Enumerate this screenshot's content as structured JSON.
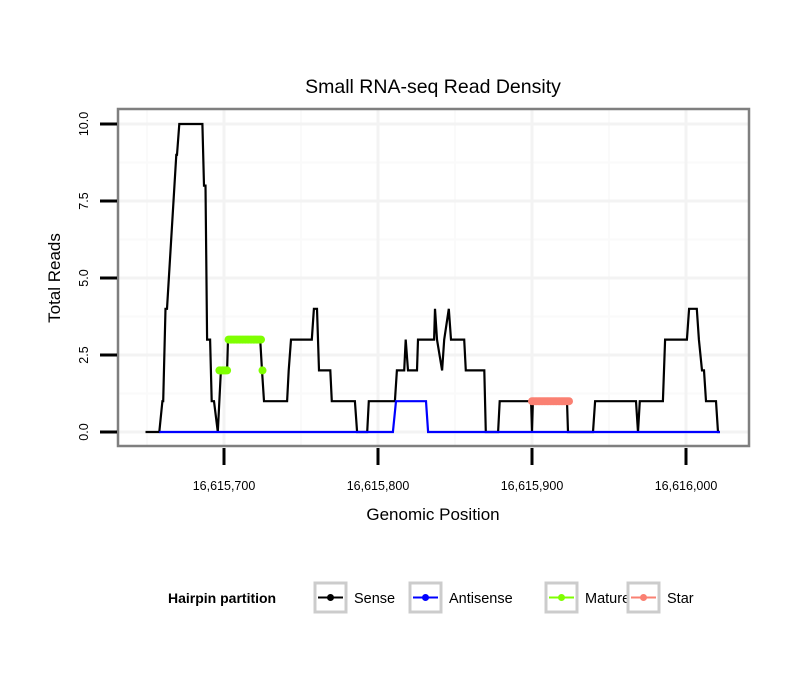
{
  "chart_data": {
    "type": "line",
    "title": "Small RNA-seq Read Density",
    "xlabel": "Genomic Position",
    "ylabel": "Total Reads",
    "xlim": [
      16615640,
      16616030
    ],
    "ylim": [
      -0.45,
      10.55
    ],
    "x_ticks": [
      16615700,
      16615800,
      16615900,
      16616000
    ],
    "x_tick_labels": [
      "16,615,700",
      "16,615,800",
      "16,615,900",
      "16,616,000"
    ],
    "y_ticks": [
      0,
      2.5,
      5,
      7.5,
      10
    ],
    "y_tick_labels": [
      "0.0",
      "2.5",
      "5.0",
      "7.5",
      "10.0"
    ],
    "grid": true,
    "legend": {
      "title": "Hairpin partition",
      "placement": "bottom",
      "entries": [
        {
          "label": "Sense",
          "color": "#000000"
        },
        {
          "label": "Antisense",
          "color": "#0000ff"
        },
        {
          "label": "Mature",
          "color": "#7fff00"
        },
        {
          "label": "Star",
          "color": "#fa8072"
        }
      ]
    },
    "series": [
      {
        "name": "Sense",
        "style": "line",
        "color": "#000000",
        "x": [
          16615649,
          16615658,
          16615660,
          16615660.5,
          16615662,
          16615663,
          16615669,
          16615669.5,
          16615671,
          16615686,
          16615687,
          16615688,
          16615689,
          16615691,
          16615692,
          16615693.5,
          16615696,
          16615698,
          16615702,
          16615702.6,
          16615723.5,
          16615724.7,
          16615726,
          16615741,
          16615742,
          16615743.5,
          16615757,
          16615758.4,
          16615760.4,
          16615761.7,
          16615769,
          16615770,
          16615785,
          16615786.4,
          16615793,
          16615794,
          16615811,
          16615812.3,
          16615817,
          16615818,
          16615819.5,
          16615825.3,
          16615826,
          16615836.4,
          16615837,
          16615838.3,
          16615841.6,
          16615843,
          16615846,
          16615847.4,
          16615856,
          16615857,
          16615869,
          16615870,
          16615878,
          16615879,
          16615899.4,
          16615900,
          16615900.6,
          16615922.7,
          16615923.4,
          16615939.6,
          16615941,
          16615967.5,
          16615968.8,
          16615970,
          16615985,
          16615986.4,
          16616000.6,
          16616002,
          16616007,
          16616008.4,
          16616010.4,
          16616011.7,
          16616013,
          16616019.5,
          16616020.8,
          16616022
        ],
        "y": [
          0,
          0,
          1,
          1,
          4,
          4,
          9,
          9,
          10,
          10,
          8,
          8,
          3,
          3,
          1,
          1,
          0,
          2,
          2,
          3,
          3,
          2,
          1,
          1,
          2,
          3,
          3,
          4,
          4,
          2,
          2,
          1,
          1,
          0,
          0,
          1,
          1,
          2,
          2,
          3,
          2,
          2,
          3,
          3,
          4,
          3,
          2,
          3,
          4,
          3,
          3,
          2,
          2,
          0,
          0,
          1,
          1,
          0,
          1,
          1,
          0,
          0,
          1,
          1,
          0,
          1,
          1,
          3,
          3,
          4,
          4,
          3,
          2,
          2,
          1,
          1,
          0,
          0
        ]
      },
      {
        "name": "Antisense",
        "style": "line",
        "color": "#0000ff",
        "x": [
          16615658,
          16615809.7,
          16615811.7,
          16615831.2,
          16615832.5,
          16616022
        ],
        "y": [
          0,
          0,
          1,
          1,
          0,
          0
        ]
      },
      {
        "name": "Mature",
        "style": "points",
        "color": "#7fff00",
        "x": [
          16615697,
          16615698,
          16615699,
          16615700,
          16615701,
          16615702,
          16615703,
          16615704,
          16615705,
          16615706,
          16615707,
          16615708,
          16615709,
          16615710,
          16615711,
          16615712,
          16615713,
          16615714,
          16615715,
          16615716,
          16615717,
          16615718,
          16615719,
          16615720,
          16615721,
          16615722,
          16615723,
          16615724,
          16615725
        ],
        "y": [
          2,
          2,
          2,
          2,
          2,
          2,
          3,
          3,
          3,
          3,
          3,
          3,
          3,
          3,
          3,
          3,
          3,
          3,
          3,
          3,
          3,
          3,
          3,
          3,
          3,
          3,
          3,
          3,
          2
        ]
      },
      {
        "name": "Star",
        "style": "points",
        "color": "#fa8072",
        "x": [
          16615900,
          16615901,
          16615902,
          16615903,
          16615904,
          16615905,
          16615906,
          16615907,
          16615908,
          16615909,
          16615910,
          16615911,
          16615912,
          16615913,
          16615914,
          16615915,
          16615916,
          16615917,
          16615918,
          16615919,
          16615920,
          16615921,
          16615922,
          16615923,
          16615924
        ],
        "y": [
          1,
          1,
          1,
          1,
          1,
          1,
          1,
          1,
          1,
          1,
          1,
          1,
          1,
          1,
          1,
          1,
          1,
          1,
          1,
          1,
          1,
          1,
          1,
          1,
          1
        ]
      }
    ]
  }
}
